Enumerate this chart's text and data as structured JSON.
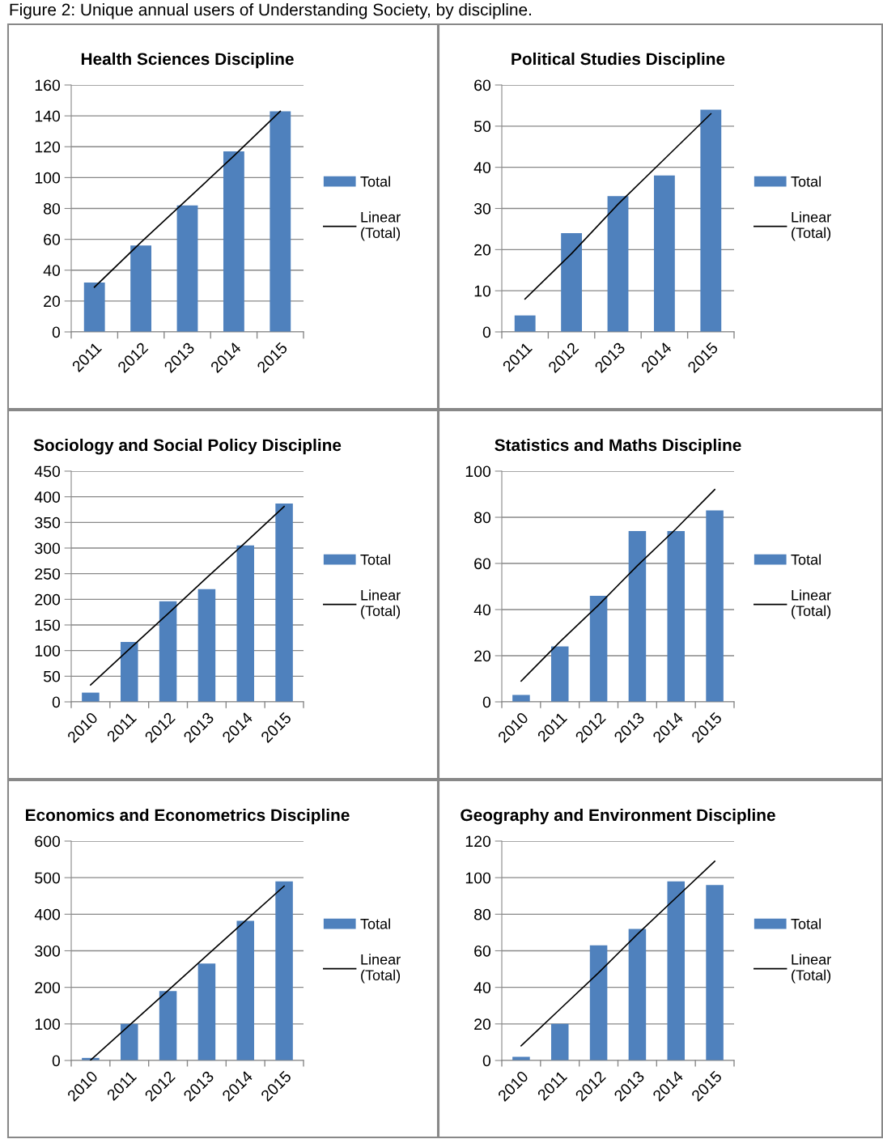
{
  "chart_data": [
    {
      "type": "bar",
      "title": "Health Sciences Discipline",
      "annotations": [
        "Figure 2: Unique annual users of Understanding Society, by discipline."
      ],
      "categories": [
        "2011",
        "2012",
        "2013",
        "2014",
        "2015"
      ],
      "ylim": [
        0,
        160
      ],
      "yticks": [
        0,
        20,
        40,
        60,
        80,
        100,
        120,
        140,
        160
      ],
      "grid": "y",
      "legend": "right",
      "series": [
        {
          "name": "Total",
          "color": "#4f81bd",
          "values": [
            32,
            56,
            82,
            117,
            143
          ]
        },
        {
          "name": "Linear (Total)",
          "type": "line",
          "color": "#000000",
          "values": [
            29,
            58,
            86,
            114,
            143
          ]
        }
      ]
    },
    {
      "type": "bar",
      "title": "Political Studies Discipline",
      "categories": [
        "2011",
        "2012",
        "2013",
        "2014",
        "2015"
      ],
      "ylim": [
        0,
        60
      ],
      "yticks": [
        0,
        10,
        20,
        30,
        40,
        50,
        60
      ],
      "grid": "y",
      "legend": "right",
      "series": [
        {
          "name": "Total",
          "color": "#4f81bd",
          "values": [
            4,
            24,
            33,
            38,
            54
          ]
        },
        {
          "name": "Linear (Total)",
          "type": "line",
          "color": "#000000",
          "values": [
            8,
            19,
            31,
            42,
            53
          ]
        }
      ]
    },
    {
      "type": "bar",
      "title": "Sociology and Social Policy Discipline",
      "categories": [
        "2010",
        "2011",
        "2012",
        "2013",
        "2014",
        "2015"
      ],
      "ylim": [
        0,
        450
      ],
      "yticks": [
        0,
        50,
        100,
        150,
        200,
        250,
        300,
        350,
        400,
        450
      ],
      "grid": "y",
      "legend": "right",
      "series": [
        {
          "name": "Total",
          "color": "#4f81bd",
          "values": [
            18,
            117,
            196,
            220,
            305,
            387
          ]
        },
        {
          "name": "Linear (Total)",
          "type": "line",
          "color": "#000000",
          "values": [
            33,
            103,
            172,
            242,
            311,
            381
          ]
        }
      ]
    },
    {
      "type": "bar",
      "title": "Statistics and Maths Discipline",
      "categories": [
        "2010",
        "2011",
        "2012",
        "2013",
        "2014",
        "2015"
      ],
      "ylim": [
        0,
        100
      ],
      "yticks": [
        0,
        20,
        40,
        60,
        80,
        100
      ],
      "grid": "y",
      "legend": "right",
      "series": [
        {
          "name": "Total",
          "color": "#4f81bd",
          "values": [
            3,
            24,
            46,
            74,
            74,
            83
          ]
        },
        {
          "name": "Linear (Total)",
          "type": "line",
          "color": "#000000",
          "values": [
            9,
            26,
            42,
            59,
            75,
            92
          ]
        }
      ]
    },
    {
      "type": "bar",
      "title": "Economics and Econometrics Discipline",
      "categories": [
        "2010",
        "2011",
        "2012",
        "2013",
        "2014",
        "2015"
      ],
      "ylim": [
        0,
        600
      ],
      "yticks": [
        0,
        100,
        200,
        300,
        400,
        500,
        600
      ],
      "grid": "y",
      "legend": "right",
      "series": [
        {
          "name": "Total",
          "color": "#4f81bd",
          "values": [
            7,
            100,
            190,
            265,
            382,
            490
          ]
        },
        {
          "name": "Linear (Total)",
          "type": "line",
          "color": "#000000",
          "values": [
            1,
            96,
            191,
            287,
            382,
            477
          ]
        }
      ]
    },
    {
      "type": "bar",
      "title": "Geography and Environment Discipline",
      "categories": [
        "2010",
        "2011",
        "2012",
        "2013",
        "2014",
        "2015"
      ],
      "ylim": [
        0,
        120
      ],
      "yticks": [
        0,
        20,
        40,
        60,
        80,
        100,
        120
      ],
      "grid": "y",
      "legend": "right",
      "series": [
        {
          "name": "Total",
          "color": "#4f81bd",
          "values": [
            2,
            20,
            63,
            72,
            98,
            96
          ]
        },
        {
          "name": "Linear (Total)",
          "type": "line",
          "color": "#000000",
          "values": [
            8,
            28,
            48,
            69,
            89,
            109
          ]
        }
      ]
    }
  ]
}
